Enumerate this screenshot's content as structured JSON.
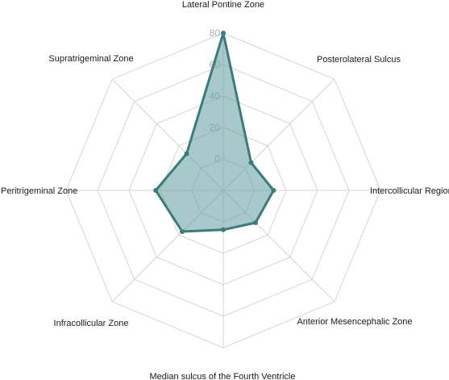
{
  "chart_data": {
    "type": "radar",
    "categories": [
      "Lateral Pontine Zone",
      "Posterolateral Sulcus",
      "Intercollicular Region",
      "Anterior Mesencephalic Zone",
      "Median sulcus of the Fourth Ventricle",
      "Infracollicular Zone",
      "Peritrigeminal Zone",
      "Supratrigeminal Zone"
    ],
    "series": [
      {
        "values": [
          80,
          5,
          12,
          9,
          5,
          17,
          23,
          13
        ]
      }
    ],
    "radial_ticks": [
      "0",
      "20",
      "40",
      "60",
      "80"
    ],
    "rlim": [
      -20,
      80
    ],
    "grid": true,
    "colors": {
      "fill": "#5f9c9c",
      "stroke": "#3b7b7b",
      "grid": "#d4d4d4",
      "tick": "#b0b0b0"
    }
  }
}
